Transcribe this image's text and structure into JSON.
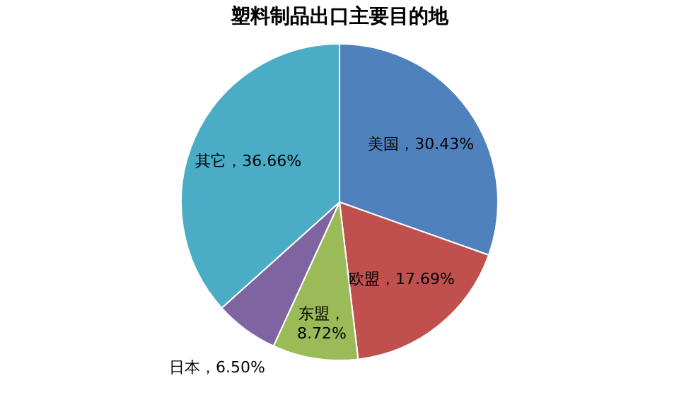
{
  "chart_data": {
    "type": "pie",
    "title": "塑料制品出口主要目的地",
    "categories": [
      "美国",
      "欧盟",
      "东盟",
      "日本",
      "其它"
    ],
    "values": [
      30.43,
      17.69,
      8.72,
      6.5,
      36.66
    ],
    "colors": [
      "#4f81bd",
      "#c0504d",
      "#9bbb59",
      "#8064a2",
      "#4bacc6"
    ],
    "value_labels": [
      "，30.43%",
      "，17.69%",
      "，8.72%",
      "，6.50%",
      "，36.66%"
    ],
    "legend": false
  }
}
